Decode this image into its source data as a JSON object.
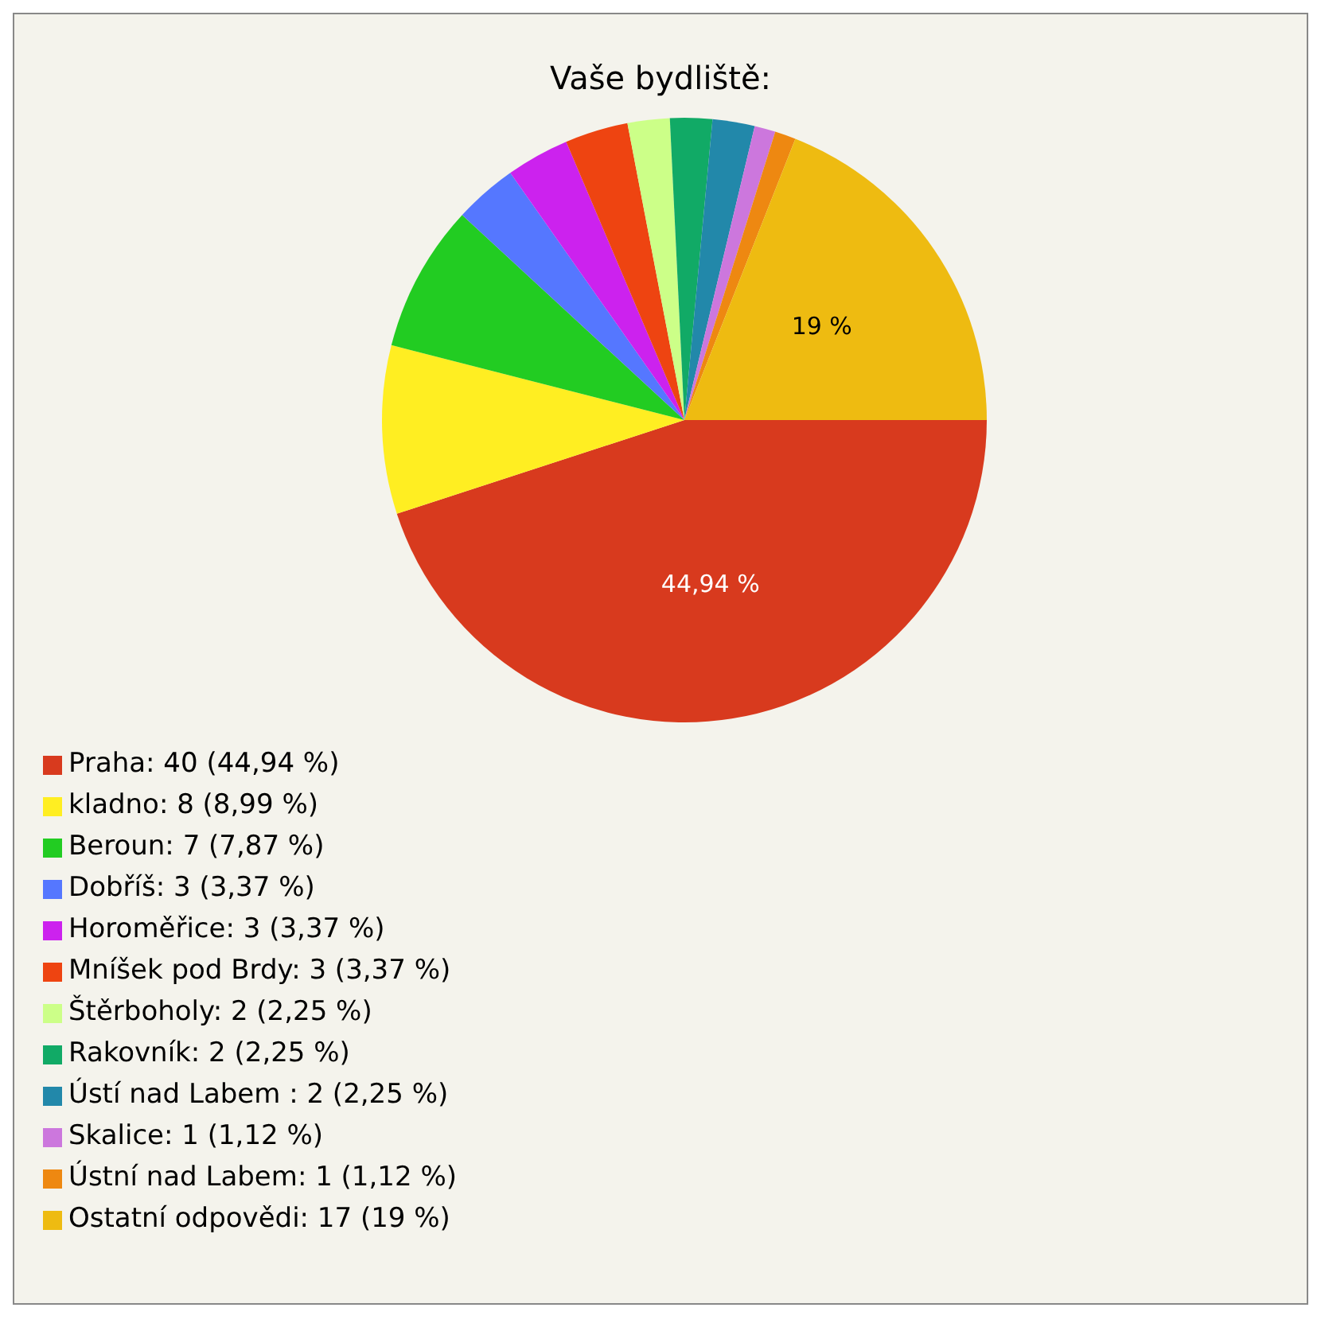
{
  "chart_data": {
    "type": "pie",
    "title": "Vaše bydliště:",
    "categories": [
      "Praha: 40 (44,94 %)",
      "kladno: 8 (8,99 %)",
      "Beroun: 7 (7,87 %)",
      "Dobříš: 3 (3,37 %)",
      "Horoměřice: 3 (3,37 %)",
      "Mníšek pod Brdy: 3 (3,37 %)",
      "Štěrboholy: 2 (2,25 %)",
      "Rakovník: 2 (2,25 %)",
      "Ústí nad Labem : 2 (2,25 %)",
      "Skalice: 1 (1,12 %)",
      "Ústní nad Labem: 1 (1,12 %)",
      "Ostatní odpovědi: 17 (19 %)"
    ],
    "values": [
      44.94,
      8.99,
      7.87,
      3.37,
      3.37,
      3.37,
      2.25,
      2.25,
      2.25,
      1.12,
      1.12,
      19
    ],
    "colors": [
      "#d83a1e",
      "#ffee22",
      "#22cc22",
      "#5577ff",
      "#cc22ee",
      "#ee4411",
      "#ccff88",
      "#11aa66",
      "#2288aa",
      "#cc77dd",
      "#ee8811",
      "#eebb11"
    ],
    "value_labels": [
      "44,94 %",
      null,
      null,
      null,
      null,
      null,
      null,
      null,
      null,
      null,
      null,
      "19 %"
    ],
    "legend": "bottom"
  }
}
